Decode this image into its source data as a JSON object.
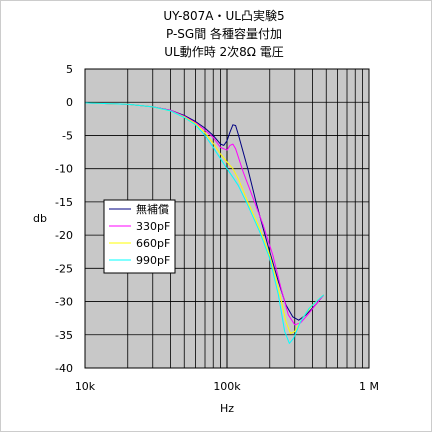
{
  "chart_data": {
    "type": "line",
    "title": [
      "UY-807A・UL凸実験5",
      "P-SG間 各種容量付加",
      "UL動作時 2次8Ω 電圧"
    ],
    "xlabel": "Hz",
    "ylabel": "db",
    "xscale": "log",
    "xlim": [
      10000,
      1000000
    ],
    "ylim": [
      -40,
      5
    ],
    "xticks": [
      {
        "value": 10000,
        "label": "10k"
      },
      {
        "value": 100000,
        "label": "100k"
      },
      {
        "value": 1000000,
        "label": "1 M"
      }
    ],
    "yticks": [
      {
        "value": 5,
        "label": "5"
      },
      {
        "value": 0,
        "label": "0"
      },
      {
        "value": -5,
        "label": "-5"
      },
      {
        "value": -10,
        "label": "-10"
      },
      {
        "value": -15,
        "label": "-15"
      },
      {
        "value": -20,
        "label": "-20"
      },
      {
        "value": -25,
        "label": "-25"
      },
      {
        "value": -30,
        "label": "-30"
      },
      {
        "value": -35,
        "label": "-35"
      },
      {
        "value": -40,
        "label": "-40"
      }
    ],
    "grid": true,
    "legend": "left-middle",
    "colors": {
      "plot_bg": "#c8c8c8",
      "grid_line": "#000000"
    },
    "series": [
      {
        "name": "無補償",
        "color": "#000080",
        "points": [
          [
            10000,
            -0.1
          ],
          [
            20000,
            -0.3
          ],
          [
            30000,
            -0.7
          ],
          [
            40000,
            -1.2
          ],
          [
            50000,
            -2
          ],
          [
            60000,
            -2.9
          ],
          [
            70000,
            -3.9
          ],
          [
            80000,
            -5
          ],
          [
            90000,
            -6.3
          ],
          [
            95000,
            -6.5
          ],
          [
            100000,
            -5.8
          ],
          [
            105000,
            -4.5
          ],
          [
            110000,
            -3.4
          ],
          [
            115000,
            -3.5
          ],
          [
            120000,
            -4.8
          ],
          [
            140000,
            -10
          ],
          [
            160000,
            -15
          ],
          [
            180000,
            -19
          ],
          [
            200000,
            -22.5
          ],
          [
            230000,
            -27
          ],
          [
            260000,
            -30.5
          ],
          [
            290000,
            -32.3
          ],
          [
            320000,
            -32.8
          ],
          [
            360000,
            -32
          ],
          [
            420000,
            -30.5
          ],
          [
            480000,
            -29
          ]
        ]
      },
      {
        "name": "330pF",
        "color": "#ff00ff",
        "points": [
          [
            10000,
            -0.1
          ],
          [
            20000,
            -0.3
          ],
          [
            30000,
            -0.7
          ],
          [
            40000,
            -1.2
          ],
          [
            50000,
            -2.1
          ],
          [
            60000,
            -3.1
          ],
          [
            70000,
            -4.2
          ],
          [
            80000,
            -5.3
          ],
          [
            90000,
            -6.8
          ],
          [
            100000,
            -7.2
          ],
          [
            105000,
            -6.5
          ],
          [
            110000,
            -6.3
          ],
          [
            115000,
            -7
          ],
          [
            130000,
            -10.5
          ],
          [
            150000,
            -14
          ],
          [
            180000,
            -18.5
          ],
          [
            210000,
            -23
          ],
          [
            240000,
            -28
          ],
          [
            270000,
            -32
          ],
          [
            300000,
            -33.5
          ],
          [
            330000,
            -33.2
          ],
          [
            370000,
            -32
          ],
          [
            420000,
            -30.5
          ],
          [
            480000,
            -29
          ]
        ]
      },
      {
        "name": "660pF",
        "color": "#ffff00",
        "points": [
          [
            10000,
            -0.1
          ],
          [
            20000,
            -0.3
          ],
          [
            30000,
            -0.7
          ],
          [
            40000,
            -1.3
          ],
          [
            50000,
            -2.2
          ],
          [
            60000,
            -3.2
          ],
          [
            70000,
            -4.6
          ],
          [
            80000,
            -6.2
          ],
          [
            90000,
            -7.8
          ],
          [
            100000,
            -9
          ],
          [
            110000,
            -10
          ],
          [
            120000,
            -11.5
          ],
          [
            140000,
            -15
          ],
          [
            170000,
            -19
          ],
          [
            200000,
            -23
          ],
          [
            230000,
            -28
          ],
          [
            260000,
            -33
          ],
          [
            280000,
            -34.8
          ],
          [
            300000,
            -34.5
          ],
          [
            340000,
            -32.5
          ],
          [
            400000,
            -30.5
          ],
          [
            480000,
            -29
          ]
        ]
      },
      {
        "name": "990pF",
        "color": "#00ffff",
        "points": [
          [
            10000,
            -0.1
          ],
          [
            20000,
            -0.3
          ],
          [
            30000,
            -0.7
          ],
          [
            40000,
            -1.3
          ],
          [
            50000,
            -2.3
          ],
          [
            60000,
            -3.4
          ],
          [
            70000,
            -5
          ],
          [
            80000,
            -6.8
          ],
          [
            90000,
            -8.5
          ],
          [
            100000,
            -10
          ],
          [
            110000,
            -11.3
          ],
          [
            120000,
            -12.5
          ],
          [
            140000,
            -15.5
          ],
          [
            170000,
            -19.5
          ],
          [
            200000,
            -23.5
          ],
          [
            230000,
            -29
          ],
          [
            255000,
            -34.5
          ],
          [
            275000,
            -36.3
          ],
          [
            295000,
            -35.5
          ],
          [
            330000,
            -33
          ],
          [
            380000,
            -31
          ],
          [
            450000,
            -29.5
          ],
          [
            480000,
            -29
          ]
        ]
      }
    ]
  }
}
